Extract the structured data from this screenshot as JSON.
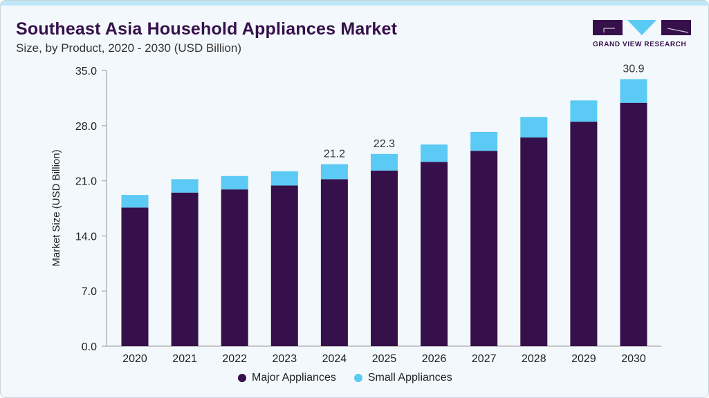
{
  "header": {
    "title": "Southeast Asia Household Appliances Market",
    "subtitle": "Size, by Product, 2020 - 2030 (USD Billion)",
    "logo_text": "GRAND VIEW RESEARCH"
  },
  "colors": {
    "major": "#36104a",
    "small": "#5bcaf5",
    "background": "#f3f8fc"
  },
  "chart_data": {
    "type": "bar",
    "stacked": true,
    "title": "Southeast Asia Household Appliances Market",
    "subtitle": "Size, by Product, 2020 - 2030 (USD Billion)",
    "xlabel": "",
    "ylabel": "Market Size (USD Billion)",
    "ylim": [
      0,
      35
    ],
    "yticks": [
      "0.0",
      "7.0",
      "14.0",
      "21.0",
      "28.0",
      "35.0"
    ],
    "grid": false,
    "legend_position": "bottom",
    "categories": [
      "2020",
      "2021",
      "2022",
      "2023",
      "2024",
      "2025",
      "2026",
      "2027",
      "2028",
      "2029",
      "2030"
    ],
    "series": [
      {
        "name": "Major Appliances",
        "values": [
          17.6,
          19.5,
          19.9,
          20.4,
          21.2,
          22.3,
          23.4,
          24.8,
          26.5,
          28.5,
          30.9
        ]
      },
      {
        "name": "Small Appliances",
        "values": [
          1.6,
          1.7,
          1.7,
          1.8,
          1.9,
          2.1,
          2.2,
          2.4,
          2.6,
          2.7,
          3.0
        ]
      }
    ],
    "data_labels": [
      {
        "category": "2024",
        "text": "21.2"
      },
      {
        "category": "2025",
        "text": "22.3"
      },
      {
        "category": "2030",
        "text": "30.9"
      }
    ]
  }
}
